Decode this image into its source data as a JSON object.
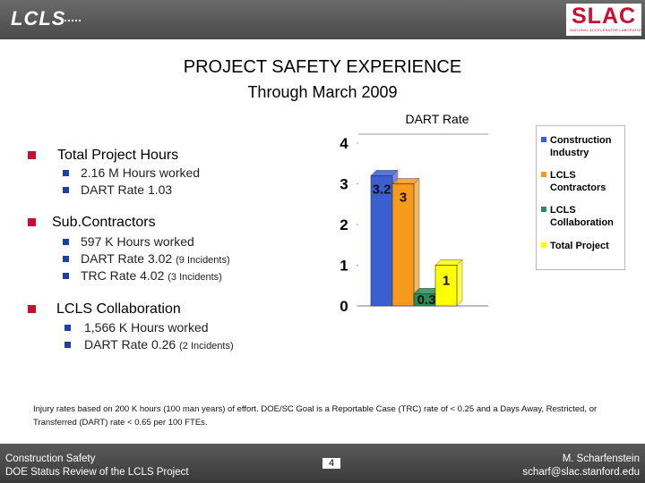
{
  "header": {
    "left_logo": "LCLS",
    "right_logo": "SLAC",
    "right_logo_sub": "NATIONAL ACCELERATOR LABORATORY"
  },
  "title": "PROJECT SAFETY EXPERIENCE",
  "subtitle": "Through March 2009",
  "sections": [
    {
      "heading": "Total Project Hours",
      "items": [
        {
          "text": "2.16 M Hours worked",
          "note": ""
        },
        {
          "text": "DART Rate 1.03",
          "note": ""
        }
      ]
    },
    {
      "heading": "Sub.Contractors",
      "items": [
        {
          "text": "597 K Hours worked",
          "note": ""
        },
        {
          "text": "DART Rate 3.02",
          "note": "(9 Incidents)"
        },
        {
          "text": "TRC Rate  4.02",
          "note": "(3 Incidents)"
        }
      ]
    },
    {
      "heading": "LCLS Collaboration",
      "items": [
        {
          "text": "1,566 K Hours worked",
          "note": ""
        },
        {
          "text": "DART Rate 0.26",
          "note": "(2 Incidents)"
        }
      ]
    }
  ],
  "chart_data": {
    "type": "bar",
    "title": "DART Rate",
    "categories": [
      "Construction Industry",
      "LCLS Contractors",
      "LCLS Collaboration",
      "Total Project"
    ],
    "values": [
      3.2,
      3,
      0.3,
      1
    ],
    "data_labels": [
      "3.2",
      "3",
      "0.3",
      "1"
    ],
    "colors": [
      "#3a5fd0",
      "#f59a1c",
      "#2e8b57",
      "#ffff00"
    ],
    "ylim": [
      0,
      4
    ],
    "yticks": [
      "0",
      "1",
      "2",
      "3",
      "4"
    ],
    "legend": [
      {
        "label_line1": "Construction",
        "label_line2": "Industry",
        "color": "#3a5fd0"
      },
      {
        "label_line1": "LCLS",
        "label_line2": "Contractors",
        "color": "#f59a1c"
      },
      {
        "label_line1": "LCLS",
        "label_line2": "Collaboration",
        "color": "#2e8b57"
      },
      {
        "label_line1": "Total Project",
        "label_line2": "",
        "color": "#ffff00"
      }
    ],
    "legend_position": "right"
  },
  "footnote": "Injury rates based on 200 K hours (100 man years) of effort. DOE/SC Goal is a Reportable Case (TRC) rate of < 0.25 and a Days Away, Restricted, or Transferred (DART) rate < 0.65  per 100 FTEs.",
  "footer": {
    "left_line1": "Construction Safety",
    "left_line2": "DOE Status Review of the LCLS Project",
    "page": "4",
    "right_line1": "M. Scharfenstein",
    "right_line2": "scharf@slac.stanford.edu"
  }
}
